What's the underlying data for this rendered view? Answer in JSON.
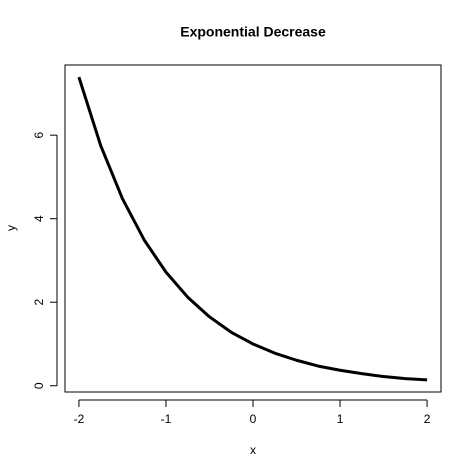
{
  "chart_data": {
    "type": "line",
    "title": "Exponential Decrease",
    "x_label": "x",
    "y_label": "y",
    "x": [
      -2,
      -1.75,
      -1.5,
      -1.25,
      -1,
      -0.75,
      -0.5,
      -0.25,
      0,
      0.25,
      0.5,
      0.75,
      1,
      1.25,
      1.5,
      1.75,
      2
    ],
    "values": [
      7.39,
      5.75,
      4.48,
      3.49,
      2.72,
      2.12,
      1.65,
      1.28,
      1,
      0.78,
      0.61,
      0.47,
      0.37,
      0.29,
      0.22,
      0.17,
      0.14
    ],
    "color": "#000000",
    "xlim": [
      -2.16,
      2.16
    ],
    "xticks": [
      -2,
      -1,
      0,
      1,
      2
    ],
    "ylim": [
      -0.15,
      7.68
    ],
    "yticks": [
      0,
      2,
      4,
      6
    ],
    "grid": false
  }
}
